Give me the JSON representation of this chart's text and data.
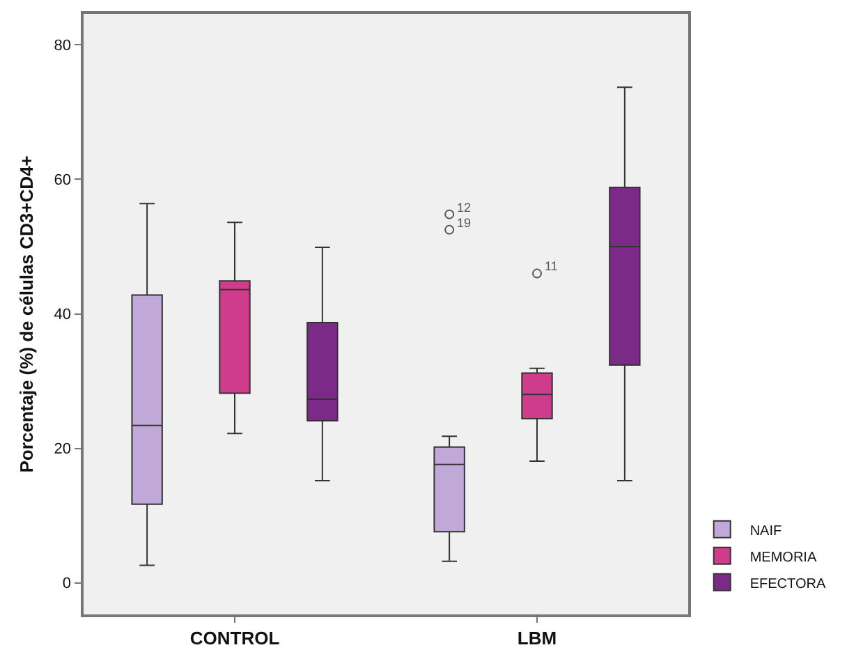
{
  "chart_data": {
    "type": "box",
    "ylabel": "Porcentaje (%) de células CD3+CD4+",
    "categories": [
      "CONTROL",
      "LBM"
    ],
    "ylim": [
      -4.7,
      84.6
    ],
    "yticks": [
      0,
      20,
      40,
      60,
      80
    ],
    "grid": false,
    "legend": "bottom right",
    "marker": "circle",
    "series": [
      {
        "name": "NAIF",
        "color": "#c0a8d8",
        "boxes": [
          {
            "low": 2.6,
            "q1": 11.7,
            "median": 23.4,
            "q3": 42.8,
            "high": 56.4
          },
          {
            "low": 3.2,
            "q1": 7.6,
            "median": 17.6,
            "q3": 20.2,
            "high": 21.8,
            "outliers": [
              54.8,
              52.5
            ]
          }
        ]
      },
      {
        "name": "MEMORIA",
        "color": "#d03c8c",
        "boxes": [
          {
            "low": 22.2,
            "q1": 28.2,
            "median": 43.6,
            "q3": 44.9,
            "high": 53.6
          },
          {
            "low": 18.1,
            "q1": 24.4,
            "median": 28.0,
            "q3": 31.2,
            "high": 31.9,
            "outliers": [
              46.0
            ]
          }
        ]
      },
      {
        "name": "EFECTORA",
        "color": "#7c2a88",
        "boxes": [
          {
            "low": 15.2,
            "q1": 24.1,
            "median": 27.3,
            "q3": 38.7,
            "high": 49.9
          },
          {
            "low": 15.2,
            "q1": 32.4,
            "median": 50.0,
            "q3": 58.8,
            "high": 73.7
          }
        ]
      }
    ],
    "annotations": [
      "12",
      "19",
      "11"
    ]
  }
}
